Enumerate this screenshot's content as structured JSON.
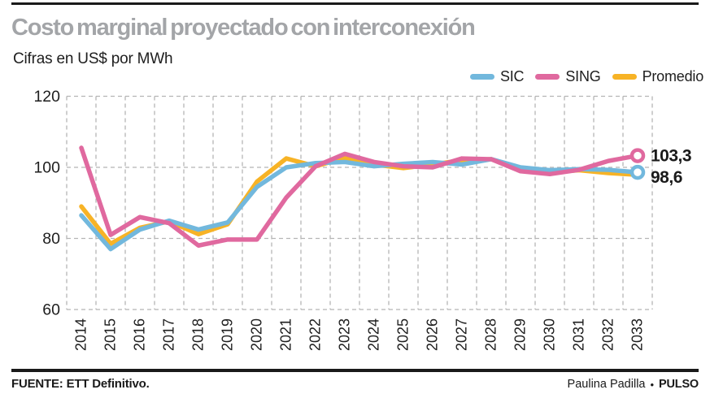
{
  "header": {
    "title": "Costo marginal proyectado con interconexión",
    "subtitle": "Cifras en US$ por MWh"
  },
  "legend": [
    {
      "label": "SIC",
      "color": "#72b8dd"
    },
    {
      "label": "SING",
      "color": "#e0699f"
    },
    {
      "label": "Promedio",
      "color": "#f7b326"
    }
  ],
  "chart_data": {
    "type": "line",
    "title": "Costo marginal proyectado con interconexión",
    "subtitle": "Cifras en US$ por MWh",
    "ylabel": "US$ por MWh",
    "ylim": [
      60,
      120
    ],
    "yticks": [
      60,
      80,
      100,
      120
    ],
    "grid": true,
    "legend_position": "top-right",
    "categories": [
      "2014",
      "2015",
      "2016",
      "2017",
      "2018",
      "2019",
      "2020",
      "2021",
      "2022",
      "2023",
      "2024",
      "2025",
      "2026",
      "2027",
      "2028",
      "2029",
      "2030",
      "2031",
      "2032",
      "2033"
    ],
    "series": [
      {
        "name": "Promedio",
        "color": "#f7b326",
        "values": [
          89,
          78.5,
          83,
          84.8,
          81.2,
          84,
          96,
          102.5,
          100.3,
          102.7,
          100.8,
          99.8,
          100.8,
          102,
          102.3,
          99.5,
          98.6,
          99.2,
          98.4,
          97.9
        ]
      },
      {
        "name": "SIC",
        "color": "#72b8dd",
        "end_label": "98,6",
        "end_marker": true,
        "end_label_dy": 13,
        "values": [
          86.5,
          77,
          82.5,
          85,
          82.5,
          84.5,
          94.5,
          100,
          101.2,
          101.5,
          100.3,
          101,
          101.5,
          100.8,
          102.3,
          100,
          99.2,
          99.5,
          99.3,
          98.6
        ]
      },
      {
        "name": "SING",
        "color": "#e0699f",
        "end_label": "103,3",
        "end_marker": true,
        "end_label_dy": 7,
        "values": [
          105.5,
          81,
          86,
          84.3,
          78,
          79.7,
          79.7,
          91.5,
          100.3,
          103.8,
          101.5,
          100.3,
          100,
          102.5,
          102.3,
          98.9,
          98.1,
          99.3,
          101.8,
          103.3
        ]
      }
    ]
  },
  "footer": {
    "source": "FUENTE: ETT Definitivo.",
    "credit": "Paulina Padilla",
    "separator": "•",
    "brand": "PULSO"
  }
}
